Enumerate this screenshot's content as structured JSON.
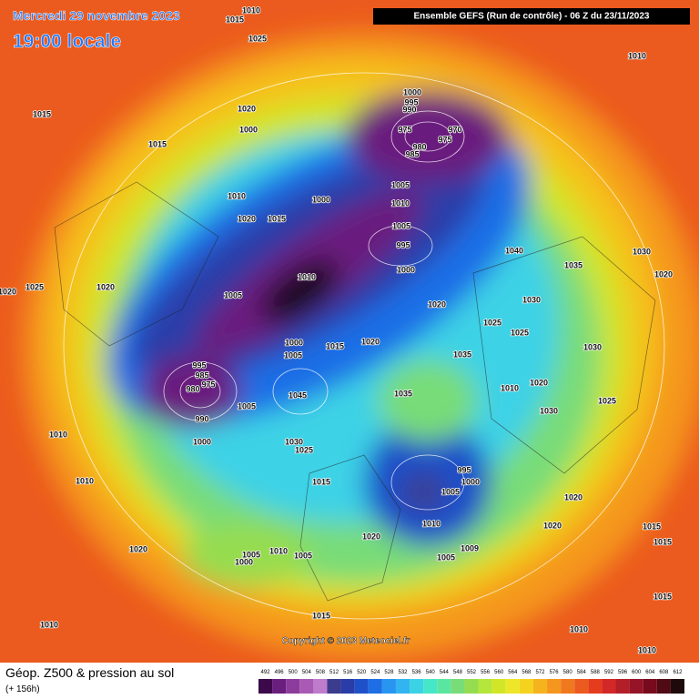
{
  "header": {
    "date": "Mercredi 29 novembre 2023",
    "time": "19:00 locale",
    "model": "Ensemble GEFS  (Run de contrôle)  -  06 Z du 23/11/2023"
  },
  "copyright": "Copyright © 2023 Meteociel.fr",
  "legend": {
    "title": "Géop. Z500 & pression au sol",
    "lead": "(+ 156h)",
    "scale": [
      492,
      496,
      500,
      504,
      508,
      512,
      516,
      520,
      524,
      528,
      532,
      536,
      540,
      544,
      548,
      552,
      556,
      560,
      564,
      568,
      572,
      576,
      580,
      584,
      588,
      592,
      596,
      600,
      604,
      608,
      612
    ],
    "colors": [
      "#3c0a4a",
      "#6a1e7e",
      "#8c3c9c",
      "#a85ab4",
      "#c07ccc",
      "#3c3c8c",
      "#2a3ca8",
      "#1e50c8",
      "#1e6ee6",
      "#2896f0",
      "#32b4f0",
      "#3cd2e6",
      "#46e6c8",
      "#5ae6a0",
      "#78dc78",
      "#96dc50",
      "#b4e63c",
      "#d2e628",
      "#eee628",
      "#f5d21e",
      "#f5b41e",
      "#f5961e",
      "#f0781e",
      "#eb5a1e",
      "#e63c1e",
      "#d22828",
      "#b41e28",
      "#961428",
      "#780a1e",
      "#500a14",
      "#1e0a0a"
    ]
  },
  "pressure_labels": [
    1015,
    1010,
    1025,
    1010,
    1015,
    1015,
    1020,
    1000,
    1000,
    995,
    990,
    975,
    970,
    975,
    980,
    985,
    1005,
    1010,
    1000,
    1010,
    1020,
    1015,
    1005,
    995,
    1000,
    1040,
    1035,
    1030,
    1020,
    1025,
    1020,
    1005,
    1010,
    1020,
    1030,
    1025,
    1025,
    1000,
    1005,
    1015,
    1020,
    1035,
    1030,
    995,
    985,
    975,
    980,
    1005,
    1045,
    1035,
    1010,
    1020,
    1025,
    1030,
    990,
    1000,
    1010,
    1030,
    1025,
    1010,
    1015,
    995,
    1000,
    1005,
    1010,
    1020,
    1020,
    1020,
    1005,
    1010,
    1005,
    1000,
    1005,
    1009,
    1015,
    1020,
    1015,
    1015,
    1010,
    1015,
    1010,
    1010,
    1020
  ]
}
